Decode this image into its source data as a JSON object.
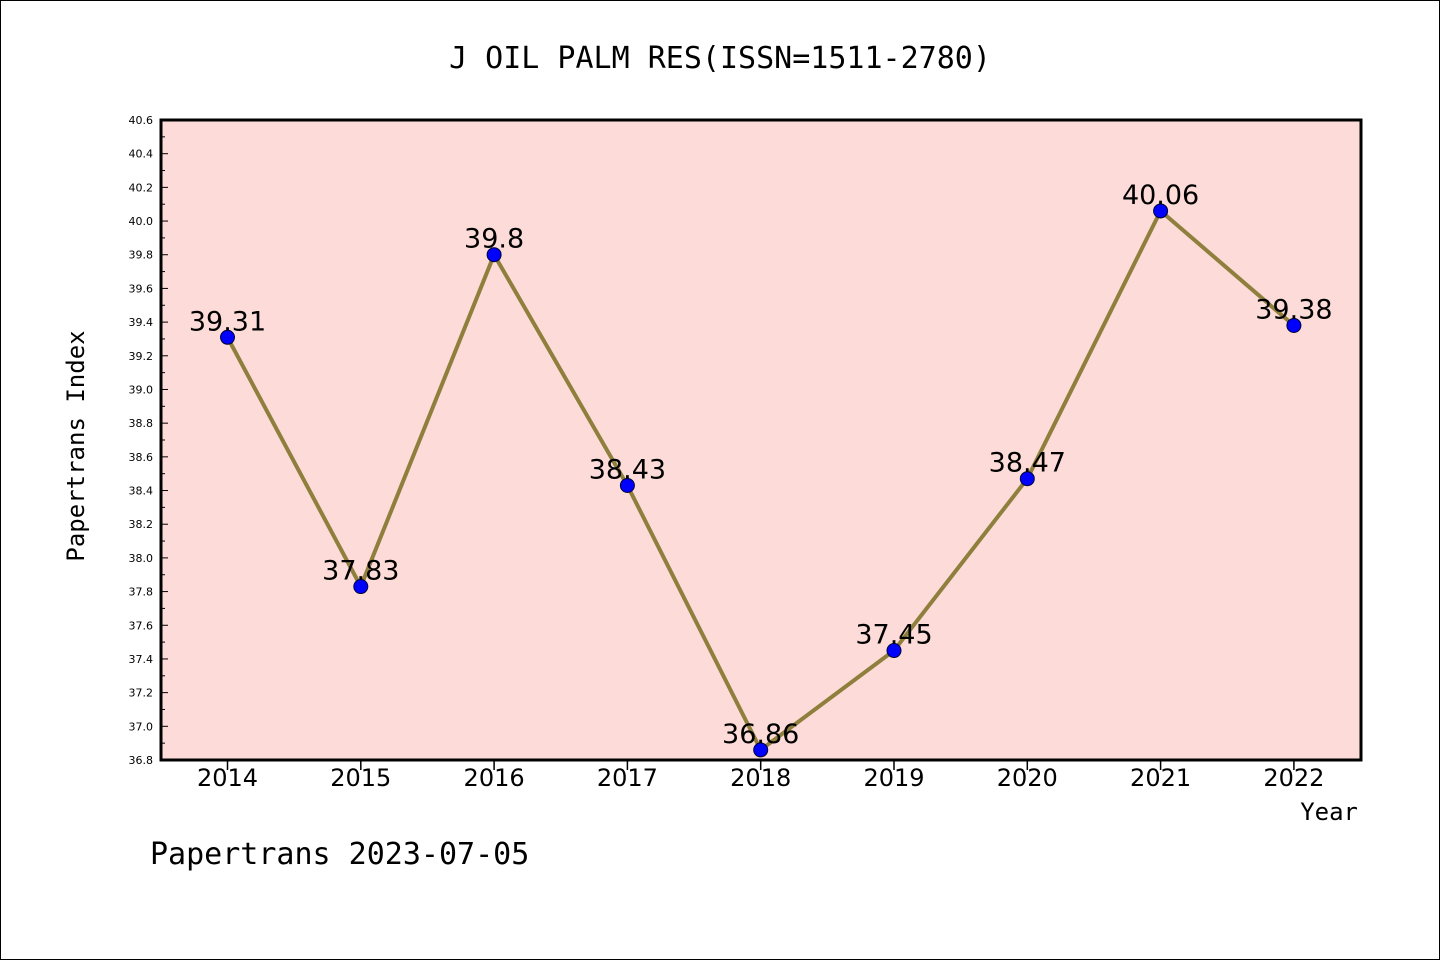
{
  "chart_data": {
    "type": "line",
    "title": "J OIL PALM RES(ISSN=1511-2780)",
    "xlabel": "Year",
    "ylabel": "Papertrans Index",
    "categories": [
      "2014",
      "2015",
      "2016",
      "2017",
      "2018",
      "2019",
      "2020",
      "2021",
      "2022"
    ],
    "series": [
      {
        "values": [
          39.31,
          37.83,
          39.8,
          38.43,
          36.86,
          37.45,
          38.47,
          40.06,
          39.38
        ],
        "data_labels": [
          "39.31",
          "37.83",
          "39.8",
          "38.43",
          "36.86",
          "37.45",
          "38.47",
          "40.06",
          "39.38"
        ]
      }
    ],
    "ylim": [
      36.8,
      40.6
    ],
    "yticks": [
      "36.8",
      "37.0",
      "37.2",
      "37.4",
      "37.6",
      "37.8",
      "38.0",
      "38.2",
      "38.4",
      "38.6",
      "38.8",
      "39.0",
      "39.2",
      "39.4",
      "39.6",
      "39.8",
      "40.0",
      "40.2",
      "40.4",
      "40.6"
    ],
    "grid": false,
    "colors": {
      "plot_background": "#fddbd8",
      "line": "#8f7f3d",
      "marker": "#0000ff"
    }
  },
  "footer": {
    "text": "Papertrans 2023-07-05"
  }
}
